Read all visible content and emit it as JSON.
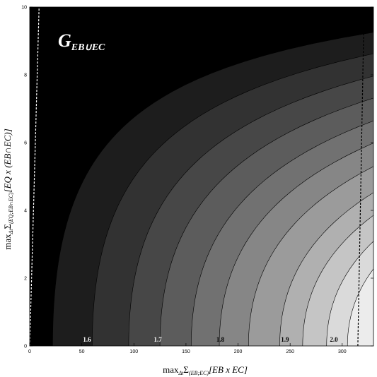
{
  "chart_data": {
    "type": "contour",
    "title": "G",
    "title_subscript": "EB∪EC",
    "xlabel": {
      "prefix": "max",
      "prefix_sub": "Δt",
      "sum": "Σ",
      "sum_sub": "(EB;EC)",
      "main": "[EB x EC]"
    },
    "ylabel": {
      "prefix": "max",
      "prefix_sub": "Δt",
      "sum": "Σ",
      "sum_sub": "(EQ;EB∩EC)",
      "main": "[EQ x (EB∩EC)]"
    },
    "xlim": [
      0,
      330
    ],
    "ylim": [
      0,
      10
    ],
    "x_ticks": [
      {
        "value": 0,
        "label": "0"
      },
      {
        "value": 50,
        "label": "50"
      },
      {
        "value": 100,
        "label": "100"
      },
      {
        "value": 150,
        "label": "150"
      },
      {
        "value": 200,
        "label": "200"
      },
      {
        "value": 250,
        "label": "250"
      },
      {
        "value": 300,
        "label": "300"
      }
    ],
    "y_ticks": [
      {
        "value": 0,
        "label": "0"
      },
      {
        "value": 2,
        "label": "2"
      },
      {
        "value": 4,
        "label": "4"
      },
      {
        "value": 6,
        "label": "6"
      },
      {
        "value": 8,
        "label": "8"
      },
      {
        "value": 10,
        "label": "10"
      }
    ],
    "contour_bands": [
      {
        "fill": "#000000",
        "x_intercept": 22
      },
      {
        "fill": "#1d1d1d",
        "x_intercept": 60
      },
      {
        "fill": "#323232",
        "x_intercept": 95
      },
      {
        "fill": "#474747",
        "x_intercept": 125
      },
      {
        "fill": "#5c5c5c",
        "x_intercept": 155
      },
      {
        "fill": "#717171",
        "x_intercept": 182
      },
      {
        "fill": "#868686",
        "x_intercept": 210
      },
      {
        "fill": "#9b9b9b",
        "x_intercept": 240
      },
      {
        "fill": "#b0b0b0",
        "x_intercept": 262
      },
      {
        "fill": "#c5c5c5",
        "x_intercept": 285
      },
      {
        "fill": "#dadada",
        "x_intercept": 305
      },
      {
        "fill": "#ececec",
        "x_intercept": 330
      }
    ],
    "contour_labels": [
      {
        "text": "1.6",
        "x": 55,
        "y": 0.12,
        "dark": false
      },
      {
        "text": "1.7",
        "x": 123,
        "y": 0.12,
        "dark": false
      },
      {
        "text": "1.8",
        "x": 183,
        "y": 0.12,
        "dark": true
      },
      {
        "text": "1.9",
        "x": 245,
        "y": 0.12,
        "dark": true
      },
      {
        "text": "2.0",
        "x": 292,
        "y": 0.12,
        "dark": true
      }
    ],
    "dashed_bounds": [
      {
        "x0": 0,
        "x1": 9,
        "color": "#ffffff"
      },
      {
        "x0": 315,
        "x1": 321,
        "color": "#000000"
      }
    ],
    "grid": false,
    "legend": "none"
  }
}
